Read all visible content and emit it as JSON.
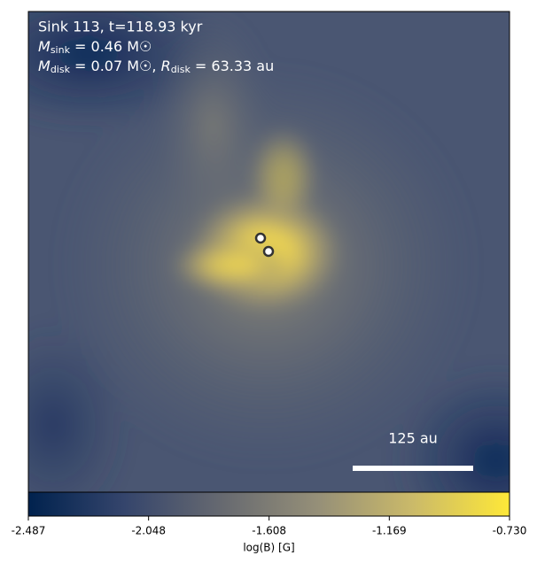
{
  "annotations": {
    "title": "Sink 113, t=118.93 kyr",
    "sink_mass": {
      "symbol": "M",
      "subscript": "sink",
      "text": " = 0.46 M☉"
    },
    "disk": {
      "symbol": "M",
      "subscript": "disk",
      "text": " = 0.07 M☉, ",
      "symbol2": "R",
      "subscript2": "disk",
      "text2": " = 63.33 au"
    },
    "scale_bar": "125 au"
  },
  "chart_data": {
    "type": "colorbar",
    "label": "log(B) [G]",
    "clim": [
      -2.487,
      -0.73
    ],
    "colors": [
      "#00224e",
      "#35456c",
      "#666970",
      "#958f78",
      "#cbba69",
      "#fee838"
    ],
    "ticks": [
      -2.487,
      -2.048,
      -1.608,
      -1.169,
      {
        "value": -0.73,
        "label": "-0.730"
      }
    ]
  }
}
